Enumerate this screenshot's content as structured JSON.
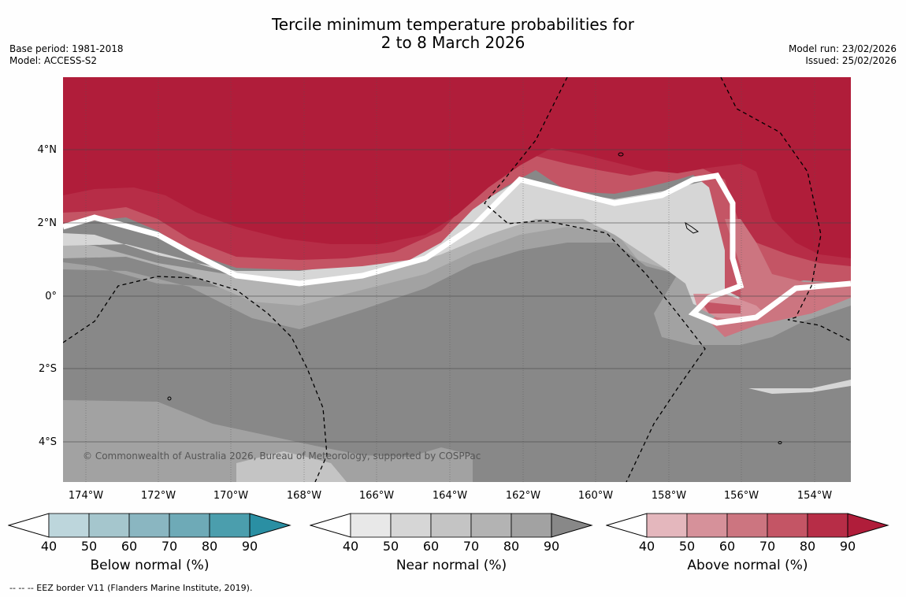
{
  "title": {
    "line1": "Tercile minimum temperature probabilities for",
    "line2": "2 to 8 March 2026"
  },
  "meta_left": {
    "base_period": "Base period: 1981-2018",
    "model": "Model: ACCESS-S2"
  },
  "meta_right": {
    "model_run": "Model run: 23/02/2026",
    "issued": "Issued: 25/02/2026"
  },
  "map": {
    "lat_labels": [
      "4°N",
      "2°N",
      "0°",
      "2°S",
      "4°S"
    ],
    "lon_labels": [
      "174°W",
      "172°W",
      "170°W",
      "168°W",
      "166°W",
      "164°W",
      "162°W",
      "160°W",
      "158°W",
      "156°W",
      "154°W"
    ],
    "copyright": "© Commonwealth of Australia 2026, Bureau of Meteorology, supported by COSPPac"
  },
  "colorbars": [
    {
      "title": "Below normal (%)",
      "ticks": [
        "40",
        "50",
        "60",
        "70",
        "80",
        "90"
      ],
      "colors": [
        "#bdd6dc",
        "#a5c6cd",
        "#8ab6c1",
        "#6eaab7",
        "#4b9ead",
        "#2a8fa3"
      ]
    },
    {
      "title": "Near normal (%)",
      "ticks": [
        "40",
        "50",
        "60",
        "70",
        "80",
        "90"
      ],
      "colors": [
        "#e8e8e8",
        "#d6d6d6",
        "#c4c4c4",
        "#b3b3b3",
        "#a2a2a2",
        "#888888"
      ]
    },
    {
      "title": "Above normal (%)",
      "ticks": [
        "40",
        "50",
        "60",
        "70",
        "80",
        "90"
      ],
      "colors": [
        "#e4b7bd",
        "#d6919a",
        "#cc7580",
        "#c45565",
        "#b72d47",
        "#b01d3a"
      ]
    }
  ],
  "footnote": "--  --  -- EEZ border V11 (Flanders Marine Institute, 2019)."
}
